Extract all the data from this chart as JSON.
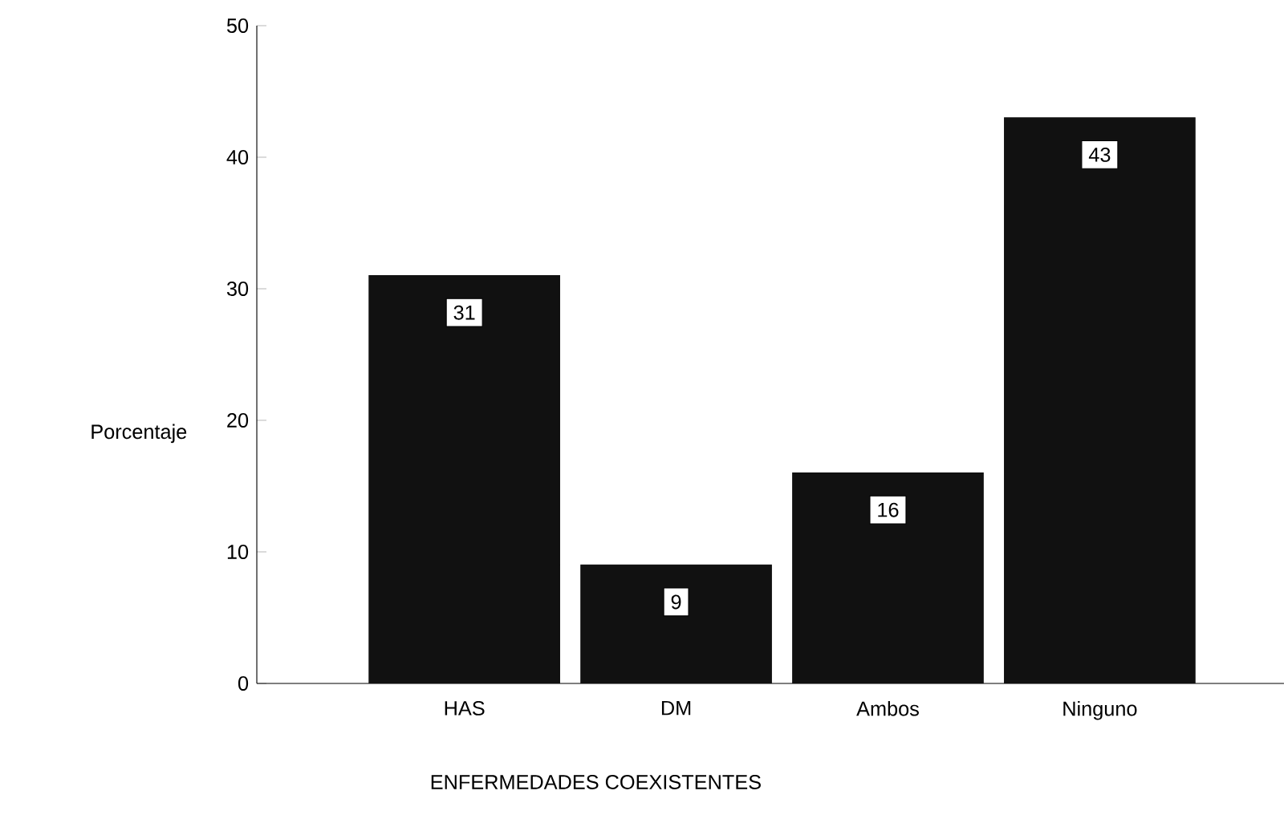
{
  "chart_data": {
    "type": "bar",
    "xlabel": "ENFERMEDADES COEXISTENTES",
    "ylabel": "Porcentaje",
    "categories": [
      "HAS",
      "DM",
      "Ambos",
      "Ninguno"
    ],
    "values": [
      31,
      9,
      16,
      43
    ],
    "color": "#111111",
    "ylim": [
      0,
      50
    ],
    "yticks": [
      0,
      10,
      20,
      30,
      40,
      50
    ],
    "data_labels": true
  }
}
